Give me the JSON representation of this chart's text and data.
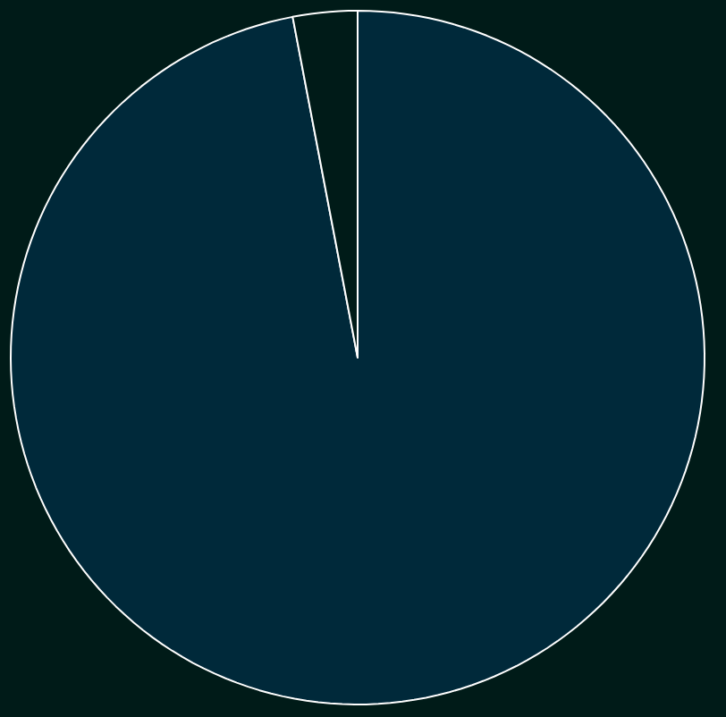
{
  "chart_data": {
    "type": "pie",
    "categories": [
      null,
      null
    ],
    "values": [
      97,
      3
    ],
    "colors": [
      "#00293a",
      "#001b18"
    ]
  }
}
